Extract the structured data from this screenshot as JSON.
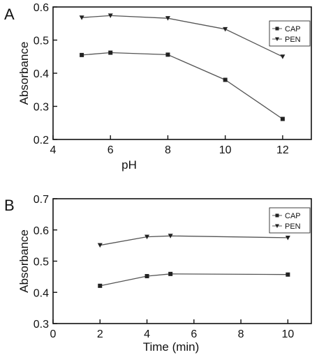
{
  "chart_data": [
    {
      "panel_label": "A",
      "type": "line",
      "xlabel": "pH",
      "ylabel": "Absorbance",
      "xlim": [
        4,
        13
      ],
      "ylim": [
        0.2,
        0.6
      ],
      "xticks": [
        4,
        6,
        8,
        10,
        12
      ],
      "yticks": [
        0.2,
        0.3,
        0.4,
        0.5,
        0.6
      ],
      "xtick_labels": [
        "4",
        "6",
        "8",
        "10",
        "12"
      ],
      "ytick_labels": [
        "0.2",
        "0.3",
        "0.4",
        "0.5",
        "0.6"
      ],
      "grid": false,
      "legend_position": "top-right",
      "series": [
        {
          "name": "CAP",
          "marker": "square",
          "x": [
            5,
            6,
            8,
            10,
            12
          ],
          "y": [
            0.455,
            0.462,
            0.456,
            0.38,
            0.262
          ]
        },
        {
          "name": "PEN",
          "marker": "triangle-down",
          "x": [
            5,
            6,
            8,
            10,
            12
          ],
          "y": [
            0.568,
            0.574,
            0.566,
            0.533,
            0.45
          ]
        }
      ]
    },
    {
      "panel_label": "B",
      "type": "line",
      "xlabel": "Time (min)",
      "ylabel": "Absorbance",
      "xlim": [
        0,
        11
      ],
      "ylim": [
        0.3,
        0.7
      ],
      "xticks": [
        0,
        2,
        4,
        6,
        8,
        10
      ],
      "yticks": [
        0.3,
        0.4,
        0.5,
        0.6,
        0.7
      ],
      "xtick_labels": [
        "0",
        "2",
        "4",
        "6",
        "8",
        "10"
      ],
      "ytick_labels": [
        "0.3",
        "0.4",
        "0.5",
        "0.6",
        "0.7"
      ],
      "grid": false,
      "legend_position": "top-right",
      "series": [
        {
          "name": "CAP",
          "marker": "square",
          "x": [
            2,
            4,
            5,
            10
          ],
          "y": [
            0.421,
            0.452,
            0.459,
            0.457
          ]
        },
        {
          "name": "PEN",
          "marker": "triangle-down",
          "x": [
            2,
            4,
            5,
            10
          ],
          "y": [
            0.551,
            0.578,
            0.581,
            0.575
          ]
        }
      ]
    }
  ],
  "colors": {
    "axis": "#111111",
    "line": "#555555",
    "marker": "#222222"
  }
}
